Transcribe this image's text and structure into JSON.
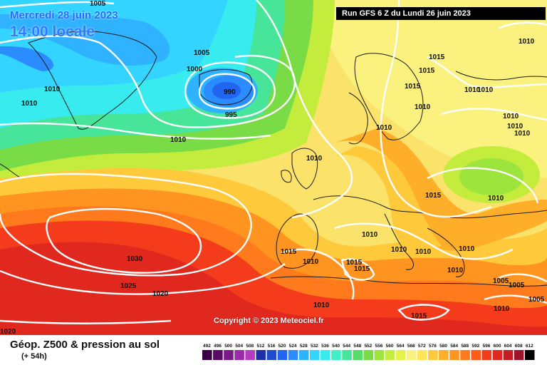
{
  "header": {
    "valid": "Mercredi 28 juin 2023",
    "local_time": "14:00 locale",
    "run": "Run GFS 6 Z du Lundi 26 juin 2023"
  },
  "copyright": "Copyright © 2023 Meteociel.fr",
  "footer": {
    "title": "Géop. Z500 & pression au sol",
    "subtitle": "(+ 54h)"
  },
  "isobars": [
    {
      "id": "top-1005",
      "text": "1005"
    },
    {
      "id": "greenland-1010",
      "text": "1010"
    },
    {
      "id": "west-1010",
      "text": "1010"
    },
    {
      "id": "iceland-1005",
      "text": "1005"
    },
    {
      "id": "iceland-1000",
      "text": "1000"
    },
    {
      "id": "low-990",
      "text": "990"
    },
    {
      "id": "low-995",
      "text": "995"
    },
    {
      "id": "mid-1010",
      "text": "1010"
    },
    {
      "id": "uk-1010",
      "text": "1010"
    },
    {
      "id": "norway-1015",
      "text": "1015"
    },
    {
      "id": "norway-1015b",
      "text": "1015"
    },
    {
      "id": "norway-1015c",
      "text": "1015"
    },
    {
      "id": "ne-1010",
      "text": "1010"
    },
    {
      "id": "scan-1010a",
      "text": "1010"
    },
    {
      "id": "scan-1010b",
      "text": "1010"
    },
    {
      "id": "scan-1010c",
      "text": "1010"
    },
    {
      "id": "ru-1010a",
      "text": "1010"
    },
    {
      "id": "ru-1010b",
      "text": "1010"
    },
    {
      "id": "ru-1010c",
      "text": "1010"
    },
    {
      "id": "ru-1010d",
      "text": "1010"
    },
    {
      "id": "ce-1015",
      "text": "1015"
    },
    {
      "id": "e-1010",
      "text": "1010"
    },
    {
      "id": "alps-1010",
      "text": "1010"
    },
    {
      "id": "it-1010a",
      "text": "1010"
    },
    {
      "id": "it-1010b",
      "text": "1010"
    },
    {
      "id": "bal-1010",
      "text": "1010"
    },
    {
      "id": "gr-1010",
      "text": "1010"
    },
    {
      "id": "iberia-1015",
      "text": "1015"
    },
    {
      "id": "iberia-1010",
      "text": "1010"
    },
    {
      "id": "med-1015a",
      "text": "1015"
    },
    {
      "id": "med-1015b",
      "text": "1015"
    },
    {
      "id": "afr-1010",
      "text": "1010"
    },
    {
      "id": "afr-1015",
      "text": "1015"
    },
    {
      "id": "se-1005a",
      "text": "1005"
    },
    {
      "id": "se-1005b",
      "text": "1005"
    },
    {
      "id": "se-1010",
      "text": "1010"
    },
    {
      "id": "se-1005c",
      "text": "1005"
    },
    {
      "id": "az-1030",
      "text": "1030"
    },
    {
      "id": "az-1025",
      "text": "1025"
    },
    {
      "id": "az-1020",
      "text": "1020"
    },
    {
      "id": "sw-1020",
      "text": "1020"
    }
  ],
  "legend": {
    "ticks": [
      "492",
      "496",
      "500",
      "504",
      "508",
      "512",
      "516",
      "520",
      "524",
      "528",
      "532",
      "536",
      "540",
      "544",
      "548",
      "552",
      "556",
      "560",
      "564",
      "568",
      "572",
      "576",
      "580",
      "584",
      "588",
      "592",
      "596",
      "600",
      "604",
      "608",
      "612"
    ],
    "colors": [
      "#3d0046",
      "#5a0b66",
      "#7a1a8a",
      "#9b2aa8",
      "#b53bc1",
      "#1d2ea8",
      "#1f4bd0",
      "#2165f0",
      "#2a8cff",
      "#2fb2ff",
      "#33d4ff",
      "#38ebee",
      "#3ef0c8",
      "#46e59a",
      "#55dc69",
      "#79dc46",
      "#9de43c",
      "#c3ec3c",
      "#e6f24a",
      "#fbf17e",
      "#ffe55a",
      "#ffc93c",
      "#ffae2a",
      "#ff9420",
      "#ff7a1c",
      "#ff5c1c",
      "#f43c1c",
      "#e0281e",
      "#c41d24",
      "#9d132c",
      "#000000"
    ]
  }
}
